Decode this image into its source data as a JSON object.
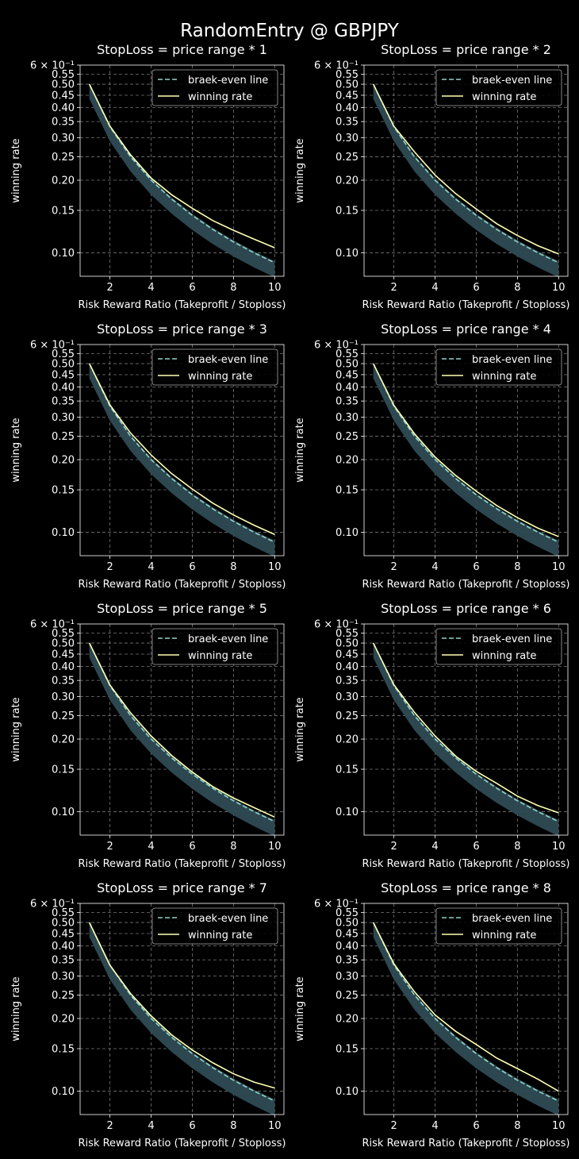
{
  "title": "RandomEntry @ GBPJPY",
  "colors": {
    "background": "#000000",
    "breakeven": "#8dd3c7",
    "winning": "#feffb3",
    "band": "#2f4b54",
    "grid": "#777777",
    "axis": "#ffffff"
  },
  "chart_data": [
    {
      "type": "line",
      "title": "StopLoss = price range * 1",
      "xlabel": "Risk Reward Ratio (Takeprofit / Stoploss)",
      "ylabel": "winning rate",
      "yscale": "log",
      "xlim": [
        0.55,
        10.45
      ],
      "ylim": [
        0.08,
        0.6
      ],
      "x_ticks": [
        "2",
        "4",
        "6",
        "8",
        "10"
      ],
      "y_ticks": [
        "0.10",
        "0.15",
        "0.20",
        "0.25",
        "0.30",
        "0.35",
        "0.40",
        "0.45",
        "0.50",
        "0.55"
      ],
      "y_top_label": "6 × 10⁻¹",
      "legend": [
        "braek-even line",
        "winning rate"
      ],
      "x": [
        1,
        2,
        3,
        4,
        5,
        6,
        7,
        8,
        9,
        10
      ],
      "series": [
        {
          "name": "braek-even line",
          "values": [
            0.5,
            0.333,
            0.25,
            0.2,
            0.167,
            0.143,
            0.125,
            0.111,
            0.1,
            0.091
          ]
        },
        {
          "name": "winning rate",
          "values": [
            0.5,
            0.335,
            0.255,
            0.204,
            0.174,
            0.153,
            0.136,
            0.124,
            0.114,
            0.105
          ]
        }
      ]
    },
    {
      "type": "line",
      "title": "StopLoss = price range * 2",
      "xlabel": "Risk Reward Ratio (Takeprofit / Stoploss)",
      "ylabel": "winning rate",
      "yscale": "log",
      "xlim": [
        0.55,
        10.45
      ],
      "ylim": [
        0.08,
        0.6
      ],
      "x_ticks": [
        "2",
        "4",
        "6",
        "8",
        "10"
      ],
      "y_ticks": [
        "0.10",
        "0.15",
        "0.20",
        "0.25",
        "0.30",
        "0.35",
        "0.40",
        "0.45",
        "0.50",
        "0.55"
      ],
      "y_top_label": "6 × 10⁻¹",
      "legend": [
        "braek-even line",
        "winning rate"
      ],
      "x": [
        1,
        2,
        3,
        4,
        5,
        6,
        7,
        8,
        9,
        10
      ],
      "series": [
        {
          "name": "braek-even line",
          "values": [
            0.5,
            0.333,
            0.25,
            0.2,
            0.167,
            0.143,
            0.125,
            0.111,
            0.1,
            0.091
          ]
        },
        {
          "name": "winning rate",
          "values": [
            0.5,
            0.335,
            0.262,
            0.21,
            0.176,
            0.152,
            0.132,
            0.118,
            0.107,
            0.099
          ]
        }
      ]
    },
    {
      "type": "line",
      "title": "StopLoss = price range * 3",
      "xlabel": "Risk Reward Ratio (Takeprofit / Stoploss)",
      "ylabel": "winning rate",
      "yscale": "log",
      "xlim": [
        0.55,
        10.45
      ],
      "ylim": [
        0.08,
        0.6
      ],
      "x_ticks": [
        "2",
        "4",
        "6",
        "8",
        "10"
      ],
      "y_ticks": [
        "0.10",
        "0.15",
        "0.20",
        "0.25",
        "0.30",
        "0.35",
        "0.40",
        "0.45",
        "0.50",
        "0.55"
      ],
      "y_top_label": "6 × 10⁻¹",
      "legend": [
        "braek-even line",
        "winning rate"
      ],
      "x": [
        1,
        2,
        3,
        4,
        5,
        6,
        7,
        8,
        9,
        10
      ],
      "series": [
        {
          "name": "braek-even line",
          "values": [
            0.5,
            0.333,
            0.25,
            0.2,
            0.167,
            0.143,
            0.125,
            0.111,
            0.1,
            0.091
          ]
        },
        {
          "name": "winning rate",
          "values": [
            0.5,
            0.337,
            0.258,
            0.209,
            0.175,
            0.151,
            0.132,
            0.118,
            0.107,
            0.098
          ]
        }
      ]
    },
    {
      "type": "line",
      "title": "StopLoss = price range * 4",
      "xlabel": "Risk Reward Ratio (Takeprofit / Stoploss)",
      "ylabel": "winning rate",
      "yscale": "log",
      "xlim": [
        0.55,
        10.45
      ],
      "ylim": [
        0.08,
        0.6
      ],
      "x_ticks": [
        "2",
        "4",
        "6",
        "8",
        "10"
      ],
      "y_ticks": [
        "0.10",
        "0.15",
        "0.20",
        "0.25",
        "0.30",
        "0.35",
        "0.40",
        "0.45",
        "0.50",
        "0.55"
      ],
      "y_top_label": "6 × 10⁻¹",
      "legend": [
        "braek-even line",
        "winning rate"
      ],
      "x": [
        1,
        2,
        3,
        4,
        5,
        6,
        7,
        8,
        9,
        10
      ],
      "series": [
        {
          "name": "braek-even line",
          "values": [
            0.5,
            0.333,
            0.25,
            0.2,
            0.167,
            0.143,
            0.125,
            0.111,
            0.1,
            0.091
          ]
        },
        {
          "name": "winning rate",
          "values": [
            0.5,
            0.336,
            0.256,
            0.205,
            0.172,
            0.148,
            0.129,
            0.115,
            0.104,
            0.096
          ]
        }
      ]
    },
    {
      "type": "line",
      "title": "StopLoss = price range * 5",
      "xlabel": "Risk Reward Ratio (Takeprofit / Stoploss)",
      "ylabel": "winning rate",
      "yscale": "log",
      "xlim": [
        0.55,
        10.45
      ],
      "ylim": [
        0.08,
        0.6
      ],
      "x_ticks": [
        "2",
        "4",
        "6",
        "8",
        "10"
      ],
      "y_ticks": [
        "0.10",
        "0.15",
        "0.20",
        "0.25",
        "0.30",
        "0.35",
        "0.40",
        "0.45",
        "0.50",
        "0.55"
      ],
      "y_top_label": "6 × 10⁻¹",
      "legend": [
        "braek-even line",
        "winning rate"
      ],
      "x": [
        1,
        2,
        3,
        4,
        5,
        6,
        7,
        8,
        9,
        10
      ],
      "series": [
        {
          "name": "braek-even line",
          "values": [
            0.5,
            0.333,
            0.25,
            0.2,
            0.167,
            0.143,
            0.125,
            0.111,
            0.1,
            0.091
          ]
        },
        {
          "name": "winning rate",
          "values": [
            0.5,
            0.335,
            0.257,
            0.206,
            0.171,
            0.146,
            0.127,
            0.114,
            0.104,
            0.095
          ]
        }
      ]
    },
    {
      "type": "line",
      "title": "StopLoss = price range * 6",
      "xlabel": "Risk Reward Ratio (Takeprofit / Stoploss)",
      "ylabel": "winning rate",
      "yscale": "log",
      "xlim": [
        0.55,
        10.45
      ],
      "ylim": [
        0.08,
        0.6
      ],
      "x_ticks": [
        "2",
        "4",
        "6",
        "8",
        "10"
      ],
      "y_ticks": [
        "0.10",
        "0.15",
        "0.20",
        "0.25",
        "0.30",
        "0.35",
        "0.40",
        "0.45",
        "0.50",
        "0.55"
      ],
      "y_top_label": "6 × 10⁻¹",
      "legend": [
        "braek-even line",
        "winning rate"
      ],
      "x": [
        1,
        2,
        3,
        4,
        5,
        6,
        7,
        8,
        9,
        10
      ],
      "series": [
        {
          "name": "braek-even line",
          "values": [
            0.5,
            0.333,
            0.25,
            0.2,
            0.167,
            0.143,
            0.125,
            0.111,
            0.1,
            0.091
          ]
        },
        {
          "name": "winning rate",
          "values": [
            0.5,
            0.336,
            0.258,
            0.206,
            0.17,
            0.147,
            0.131,
            0.116,
            0.106,
            0.099
          ]
        }
      ]
    },
    {
      "type": "line",
      "title": "StopLoss = price range * 7",
      "xlabel": "Risk Reward Ratio (Takeprofit / Stoploss)",
      "ylabel": "winning rate",
      "yscale": "log",
      "xlim": [
        0.55,
        10.45
      ],
      "ylim": [
        0.08,
        0.6
      ],
      "x_ticks": [
        "2",
        "4",
        "6",
        "8",
        "10"
      ],
      "y_ticks": [
        "0.10",
        "0.15",
        "0.20",
        "0.25",
        "0.30",
        "0.35",
        "0.40",
        "0.45",
        "0.50",
        "0.55"
      ],
      "y_top_label": "6 × 10⁻¹",
      "legend": [
        "braek-even line",
        "winning rate"
      ],
      "x": [
        1,
        2,
        3,
        4,
        5,
        6,
        7,
        8,
        9,
        10
      ],
      "series": [
        {
          "name": "braek-even line",
          "values": [
            0.5,
            0.333,
            0.25,
            0.2,
            0.167,
            0.143,
            0.125,
            0.111,
            0.1,
            0.091
          ]
        },
        {
          "name": "winning rate",
          "values": [
            0.5,
            0.332,
            0.254,
            0.205,
            0.171,
            0.148,
            0.131,
            0.118,
            0.109,
            0.103
          ]
        }
      ]
    },
    {
      "type": "line",
      "title": "StopLoss = price range * 8",
      "xlabel": "Risk Reward Ratio (Takeprofit / Stoploss)",
      "ylabel": "winning rate",
      "yscale": "log",
      "xlim": [
        0.55,
        10.45
      ],
      "ylim": [
        0.08,
        0.6
      ],
      "x_ticks": [
        "2",
        "4",
        "6",
        "8",
        "10"
      ],
      "y_ticks": [
        "0.10",
        "0.15",
        "0.20",
        "0.25",
        "0.30",
        "0.35",
        "0.40",
        "0.45",
        "0.50",
        "0.55"
      ],
      "y_top_label": "6 × 10⁻¹",
      "legend": [
        "braek-even line",
        "winning rate"
      ],
      "x": [
        1,
        2,
        3,
        4,
        5,
        6,
        7,
        8,
        9,
        10
      ],
      "series": [
        {
          "name": "braek-even line",
          "values": [
            0.5,
            0.333,
            0.25,
            0.2,
            0.167,
            0.143,
            0.125,
            0.111,
            0.1,
            0.091
          ]
        },
        {
          "name": "winning rate",
          "values": [
            0.5,
            0.337,
            0.258,
            0.207,
            0.177,
            0.156,
            0.137,
            0.124,
            0.112,
            0.1
          ]
        }
      ]
    }
  ]
}
